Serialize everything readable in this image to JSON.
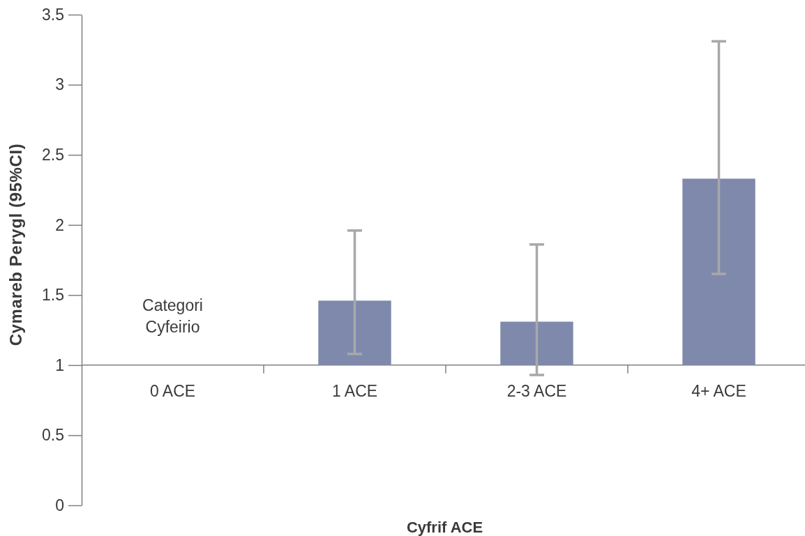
{
  "chart_data": {
    "type": "bar",
    "xlabel": "Cyfrif ACE",
    "ylabel": "Cymareb Perygl (95%CI)",
    "categories": [
      "0 ACE",
      "1 ACE",
      "2-3 ACE",
      "4+ ACE"
    ],
    "base": [
      null,
      1,
      1,
      1
    ],
    "values": [
      null,
      0.46,
      0.31,
      1.33
    ],
    "color": "#7f89ab",
    "errors": [
      null,
      [
        1.08,
        1.96
      ],
      [
        0.93,
        1.86
      ],
      [
        1.65,
        3.31
      ]
    ],
    "ylim": [
      0,
      3.5
    ],
    "yticks": [
      0,
      0.5,
      1,
      1.5,
      2,
      2.5,
      3,
      3.5
    ],
    "annotations": [
      "Categori Cyfeirio"
    ]
  }
}
